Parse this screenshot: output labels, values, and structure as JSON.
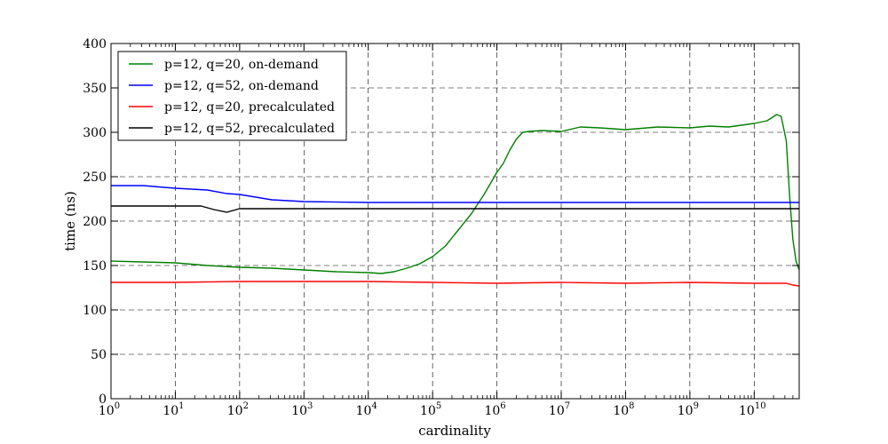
{
  "chart_data": {
    "type": "line",
    "title": "",
    "xlabel": "cardinality",
    "ylabel": "time (ns)",
    "xscale": "log10",
    "xlim_exponent": [
      0,
      10.7
    ],
    "ylim": [
      0,
      400
    ],
    "grid": true,
    "legend_position": "top-left",
    "x_tick_labels": [
      {
        "base": "10",
        "exp": "0"
      },
      {
        "base": "10",
        "exp": "1"
      },
      {
        "base": "10",
        "exp": "2"
      },
      {
        "base": "10",
        "exp": "3"
      },
      {
        "base": "10",
        "exp": "4"
      },
      {
        "base": "10",
        "exp": "5"
      },
      {
        "base": "10",
        "exp": "6"
      },
      {
        "base": "10",
        "exp": "7"
      },
      {
        "base": "10",
        "exp": "8"
      },
      {
        "base": "10",
        "exp": "9"
      },
      {
        "base": "10",
        "exp": "10"
      }
    ],
    "y_tick_labels": [
      "0",
      "50",
      "100",
      "150",
      "200",
      "250",
      "300",
      "350",
      "400"
    ],
    "series": [
      {
        "name": "p=12, q=20, on-demand",
        "color": "#008000",
        "points": [
          [
            0,
            155
          ],
          [
            0.5,
            154
          ],
          [
            1,
            153
          ],
          [
            1.5,
            150
          ],
          [
            2,
            148
          ],
          [
            2.5,
            147
          ],
          [
            3,
            145
          ],
          [
            3.5,
            143
          ],
          [
            4,
            142
          ],
          [
            4.2,
            141
          ],
          [
            4.4,
            143
          ],
          [
            4.6,
            147
          ],
          [
            4.8,
            152
          ],
          [
            5,
            160
          ],
          [
            5.2,
            172
          ],
          [
            5.4,
            190
          ],
          [
            5.6,
            208
          ],
          [
            5.8,
            230
          ],
          [
            6,
            255
          ],
          [
            6.1,
            265
          ],
          [
            6.2,
            280
          ],
          [
            6.3,
            292
          ],
          [
            6.4,
            300
          ],
          [
            6.5,
            301
          ],
          [
            6.7,
            302
          ],
          [
            7,
            301
          ],
          [
            7.3,
            306
          ],
          [
            7.6,
            305
          ],
          [
            8,
            303
          ],
          [
            8.5,
            306
          ],
          [
            9,
            305
          ],
          [
            9.3,
            307
          ],
          [
            9.6,
            306
          ],
          [
            10,
            310
          ],
          [
            10.2,
            313
          ],
          [
            10.35,
            320
          ],
          [
            10.42,
            318
          ],
          [
            10.5,
            290
          ],
          [
            10.55,
            230
          ],
          [
            10.6,
            180
          ],
          [
            10.65,
            155
          ],
          [
            10.7,
            145
          ]
        ]
      },
      {
        "name": "p=12, q=52, on-demand",
        "color": "#0000ff",
        "points": [
          [
            0,
            240
          ],
          [
            0.5,
            240
          ],
          [
            1,
            237
          ],
          [
            1.5,
            235
          ],
          [
            1.8,
            231
          ],
          [
            2,
            230
          ],
          [
            2.5,
            224
          ],
          [
            3,
            222
          ],
          [
            4,
            221
          ],
          [
            5,
            221
          ],
          [
            6,
            221
          ],
          [
            7,
            221
          ],
          [
            8,
            221
          ],
          [
            9,
            221
          ],
          [
            10,
            221
          ],
          [
            10.7,
            221
          ]
        ]
      },
      {
        "name": "p=12, q=20, precalculated",
        "color": "#ff0000",
        "points": [
          [
            0,
            131
          ],
          [
            1,
            131
          ],
          [
            2,
            132
          ],
          [
            3,
            132
          ],
          [
            4,
            132
          ],
          [
            5,
            131
          ],
          [
            6,
            130
          ],
          [
            7,
            131
          ],
          [
            8,
            130
          ],
          [
            9,
            131
          ],
          [
            10,
            130
          ],
          [
            10.5,
            130
          ],
          [
            10.6,
            128
          ],
          [
            10.7,
            127
          ]
        ]
      },
      {
        "name": "p=12, q=52, precalculated",
        "color": "#000000",
        "points": [
          [
            0,
            217
          ],
          [
            0.5,
            217
          ],
          [
            1,
            217
          ],
          [
            1.4,
            217
          ],
          [
            1.6,
            213
          ],
          [
            1.8,
            210
          ],
          [
            2,
            214
          ],
          [
            3,
            214
          ],
          [
            4,
            214
          ],
          [
            5,
            214
          ],
          [
            6,
            214
          ],
          [
            7,
            214
          ],
          [
            8,
            214
          ],
          [
            9,
            214
          ],
          [
            10,
            214
          ],
          [
            10.7,
            214
          ]
        ]
      }
    ]
  }
}
